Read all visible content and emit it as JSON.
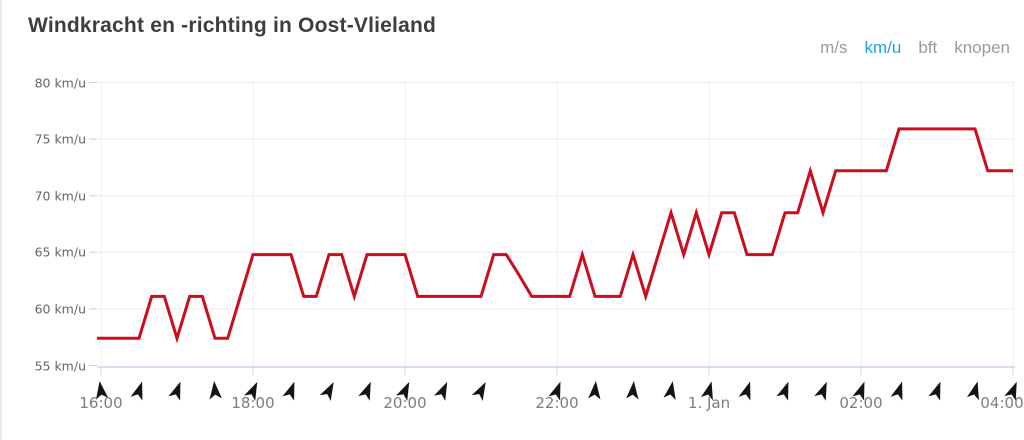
{
  "page": {
    "title": "Windkracht en -richting in Oost-Vlieland"
  },
  "unit_selector": {
    "options": [
      {
        "label": "m/s",
        "active": false
      },
      {
        "label": "km/u",
        "active": true
      },
      {
        "label": "bft",
        "active": false
      },
      {
        "label": "knopen",
        "active": false
      }
    ],
    "active_color": "#1da2e8",
    "inactive_color": "#9b9b9b"
  },
  "chart_data": {
    "type": "line",
    "title": "Windkracht en -richting in Oost-Vlieland",
    "series_name": "Windkracht (km/u)",
    "unit": "km/u",
    "ylim": [
      55,
      80
    ],
    "xlim_minutes": [
      0,
      720
    ],
    "grid": true,
    "y_ticks": [
      {
        "value": 80,
        "label": "80 km/u"
      },
      {
        "value": 75,
        "label": "75 km/u"
      },
      {
        "value": 70,
        "label": "70 km/u"
      },
      {
        "value": 65,
        "label": "65 km/u"
      },
      {
        "value": 60,
        "label": "60 km/u"
      },
      {
        "value": 55,
        "label": "55 km/u"
      }
    ],
    "x_ticks": [
      {
        "t": 0,
        "label": "16:00"
      },
      {
        "t": 120,
        "label": "18:00"
      },
      {
        "t": 240,
        "label": "20:00"
      },
      {
        "t": 360,
        "label": "22:00"
      },
      {
        "t": 480,
        "label": "1. Jan"
      },
      {
        "t": 600,
        "label": "02:00"
      },
      {
        "t": 720,
        "label": "04:00"
      }
    ],
    "series": {
      "t_start": -10,
      "t_step": 10,
      "values": [
        57.4,
        57.4,
        57.4,
        57.4,
        57.4,
        61.1,
        61.1,
        57.4,
        61.1,
        61.1,
        57.4,
        57.4,
        61.1,
        64.8,
        64.8,
        64.8,
        64.8,
        61.1,
        61.1,
        64.8,
        64.8,
        61.1,
        64.8,
        64.8,
        64.8,
        64.8,
        61.1,
        61.1,
        61.1,
        61.1,
        61.1,
        61.1,
        64.8,
        64.8,
        63.0,
        61.1,
        61.1,
        61.1,
        61.1,
        64.8,
        61.1,
        61.1,
        61.1,
        64.8,
        61.1,
        64.8,
        68.5,
        64.8,
        68.5,
        64.8,
        68.5,
        68.5,
        64.8,
        64.8,
        64.8,
        68.5,
        68.5,
        72.2,
        68.5,
        72.2,
        72.2,
        72.2,
        72.2,
        72.2,
        75.9,
        75.9,
        75.9,
        75.9,
        75.9,
        75.9,
        75.9,
        72.2,
        72.2,
        72.2
      ]
    },
    "wind_arrows": [
      {
        "t": 0,
        "deg": -8
      },
      {
        "t": 30,
        "deg": 18
      },
      {
        "t": 60,
        "deg": 20
      },
      {
        "t": 90,
        "deg": -5
      },
      {
        "t": 120,
        "deg": 25
      },
      {
        "t": 150,
        "deg": 20
      },
      {
        "t": 180,
        "deg": 28
      },
      {
        "t": 210,
        "deg": 22
      },
      {
        "t": 240,
        "deg": 25
      },
      {
        "t": 270,
        "deg": 25
      },
      {
        "t": 300,
        "deg": 28
      },
      {
        "t": 360,
        "deg": 20
      },
      {
        "t": 390,
        "deg": 5
      },
      {
        "t": 420,
        "deg": 5
      },
      {
        "t": 450,
        "deg": 10
      },
      {
        "t": 480,
        "deg": 15
      },
      {
        "t": 510,
        "deg": 18
      },
      {
        "t": 540,
        "deg": 20
      },
      {
        "t": 570,
        "deg": 22
      },
      {
        "t": 600,
        "deg": 20
      },
      {
        "t": 630,
        "deg": 18
      },
      {
        "t": 660,
        "deg": 20
      },
      {
        "t": 690,
        "deg": 15
      },
      {
        "t": 720,
        "deg": 22
      }
    ],
    "colors": {
      "line": "#cc0d1e",
      "arrow": "#141414",
      "grid": "#ececec",
      "axis": "#c7d7eb",
      "y_tick_dash": "#d0d0d0",
      "y_label": "#666666",
      "x_label": "#7d7d7d"
    }
  }
}
